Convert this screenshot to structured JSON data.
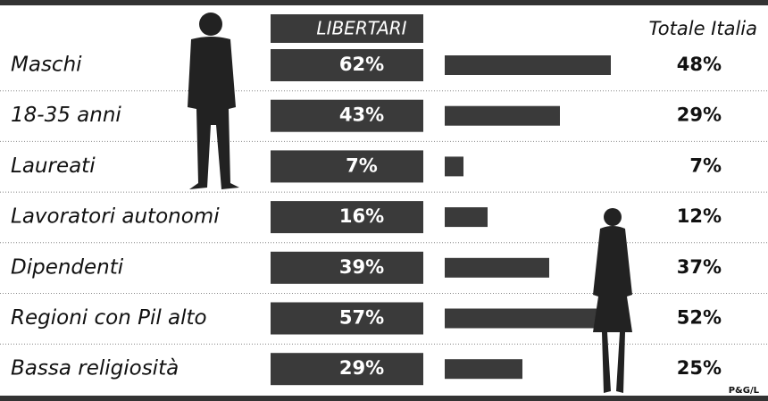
{
  "chart_data": {
    "type": "bar",
    "categories": [
      "Maschi",
      "18-35 anni",
      "Laureati",
      "Lavoratori autonomi",
      "Dipendenti",
      "Regioni con Pil alto",
      "Bassa religiosità"
    ],
    "series": [
      {
        "name": "LIBERTARI",
        "color": "#3a3a3a",
        "values": [
          62,
          43,
          7,
          16,
          39,
          57,
          29
        ],
        "value_labels": [
          "62%",
          "43%",
          "7%",
          "16%",
          "39%",
          "57%",
          "29%"
        ]
      },
      {
        "name": "Totale Italia",
        "color": "#111111",
        "values": [
          48,
          29,
          7,
          12,
          37,
          52,
          25
        ],
        "value_labels": [
          "48%",
          "29%",
          "7%",
          "12%",
          "37%",
          "52%",
          "25%"
        ]
      }
    ],
    "source": "P&G/L"
  }
}
